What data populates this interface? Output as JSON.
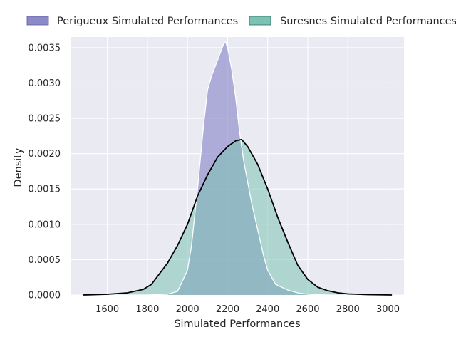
{
  "chart_data": {
    "type": "area",
    "xlabel": "Simulated Performances",
    "ylabel": "Density",
    "xlim": [
      1420,
      3080
    ],
    "ylim": [
      0,
      0.00365
    ],
    "x_ticks": [
      "1600",
      "1800",
      "2000",
      "2200",
      "2400",
      "2600",
      "2800",
      "3000"
    ],
    "y_ticks": [
      "0.0000",
      "0.0005",
      "0.0010",
      "0.0015",
      "0.0020",
      "0.0025",
      "0.0030",
      "0.0035"
    ],
    "grid": true,
    "legend_position": "top",
    "series": [
      {
        "name": "Perigueux Simulated Performances",
        "color": "#8c89c9",
        "x": [
          1480,
          1800,
          1900,
          1950,
          2000,
          2020,
          2050,
          2080,
          2100,
          2120,
          2140,
          2160,
          2180,
          2190,
          2200,
          2220,
          2240,
          2260,
          2280,
          2300,
          2320,
          2340,
          2360,
          2380,
          2400,
          2440,
          2500,
          2550,
          2600,
          2700,
          3020
        ],
        "y": [
          0,
          0,
          1e-05,
          5e-05,
          0.00035,
          0.0007,
          0.0015,
          0.0024,
          0.0029,
          0.0031,
          0.00325,
          0.0034,
          0.00355,
          0.00358,
          0.0035,
          0.0032,
          0.0028,
          0.0023,
          0.0019,
          0.0016,
          0.0013,
          0.00105,
          0.0008,
          0.00055,
          0.00035,
          0.00015,
          7e-05,
          3e-05,
          1e-05,
          0,
          0
        ]
      },
      {
        "name": "Suresnes Simulated Performances",
        "color": "#7cc2b2",
        "x": [
          1480,
          1600,
          1700,
          1780,
          1820,
          1860,
          1900,
          1950,
          2000,
          2050,
          2100,
          2150,
          2200,
          2240,
          2270,
          2300,
          2350,
          2400,
          2450,
          2500,
          2550,
          2600,
          2650,
          2700,
          2750,
          2800,
          2900,
          3020
        ],
        "y": [
          0,
          1e-05,
          3e-05,
          8e-05,
          0.00015,
          0.0003,
          0.00045,
          0.0007,
          0.001,
          0.0014,
          0.0017,
          0.00195,
          0.0021,
          0.00218,
          0.0022,
          0.0021,
          0.00185,
          0.0015,
          0.0011,
          0.00075,
          0.00042,
          0.00022,
          0.00011,
          6e-05,
          3e-05,
          1.5e-05,
          5e-06,
          0
        ]
      }
    ]
  }
}
